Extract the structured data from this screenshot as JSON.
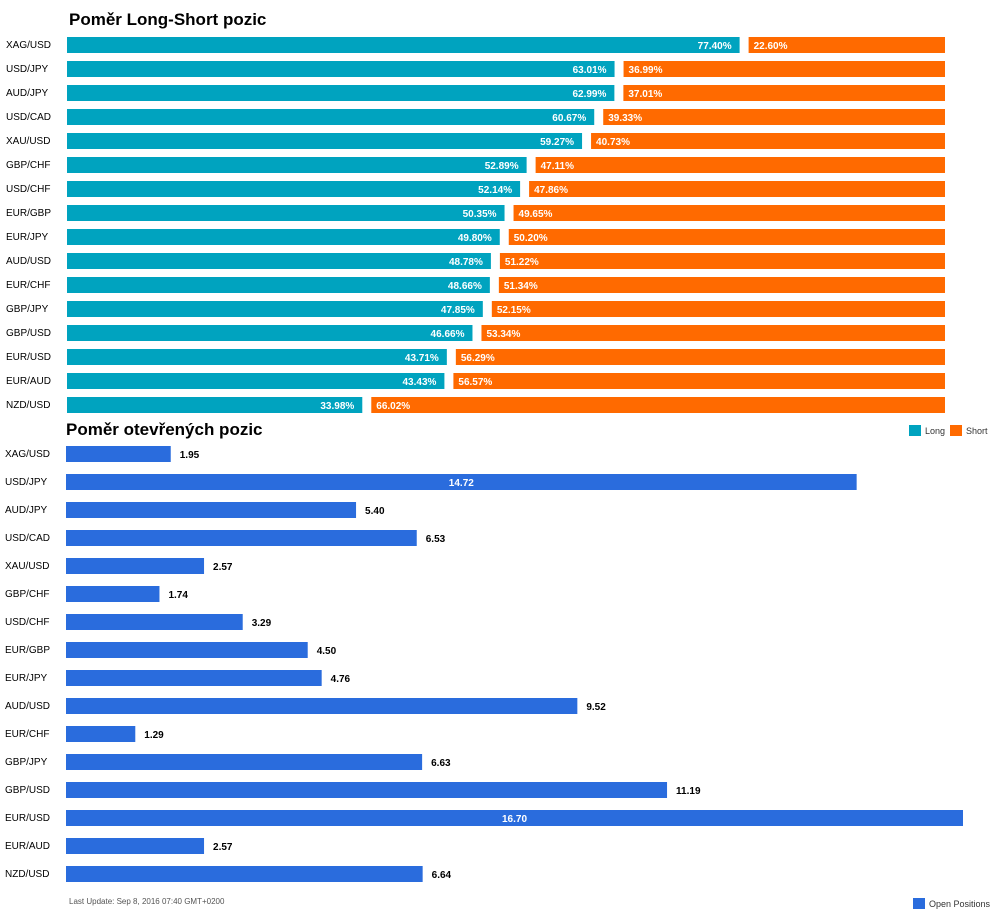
{
  "chart_data": [
    {
      "type": "bar",
      "title": "Poměr Long-Short pozic",
      "categories": [
        "XAG/USD",
        "USD/JPY",
        "AUD/JPY",
        "USD/CAD",
        "XAU/USD",
        "GBP/CHF",
        "USD/CHF",
        "EUR/GBP",
        "EUR/JPY",
        "AUD/USD",
        "EUR/CHF",
        "GBP/JPY",
        "GBP/USD",
        "EUR/USD",
        "EUR/AUD",
        "NZD/USD"
      ],
      "series": [
        {
          "name": "Long",
          "color": "#00a3bf",
          "values": [
            77.4,
            63.01,
            62.99,
            60.67,
            59.27,
            52.89,
            52.14,
            50.35,
            49.8,
            48.78,
            48.66,
            47.85,
            46.66,
            43.71,
            43.43,
            33.98
          ]
        },
        {
          "name": "Short",
          "color": "#ff6a00",
          "values": [
            22.6,
            36.99,
            37.01,
            39.33,
            40.73,
            47.11,
            47.86,
            49.65,
            50.2,
            51.22,
            51.34,
            52.15,
            53.34,
            56.29,
            56.57,
            66.02
          ]
        }
      ],
      "value_suffix": "%",
      "stacked": true,
      "legend_position": "bottom-right"
    },
    {
      "type": "bar",
      "title": "Poměr otevřených pozic",
      "categories": [
        "XAG/USD",
        "USD/JPY",
        "AUD/JPY",
        "USD/CAD",
        "XAU/USD",
        "GBP/CHF",
        "USD/CHF",
        "EUR/GBP",
        "EUR/JPY",
        "AUD/USD",
        "EUR/CHF",
        "GBP/JPY",
        "GBP/USD",
        "EUR/USD",
        "EUR/AUD",
        "NZD/USD"
      ],
      "series": [
        {
          "name": "Open Positions",
          "color": "#2a6cdd",
          "values": [
            1.95,
            14.72,
            5.4,
            6.53,
            2.57,
            1.74,
            3.29,
            4.5,
            4.76,
            9.52,
            1.29,
            6.63,
            11.19,
            16.7,
            2.57,
            6.64
          ]
        }
      ],
      "legend_position": "bottom-right",
      "footer": "Last Update: Sep 8, 2016 07:40 GMT+0200"
    }
  ]
}
